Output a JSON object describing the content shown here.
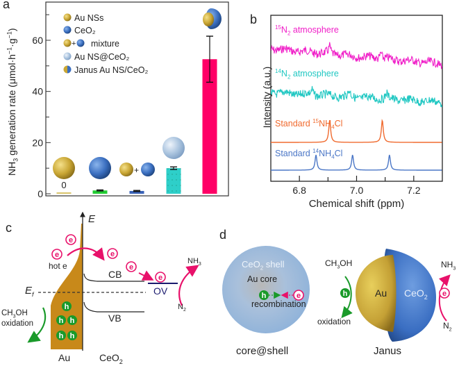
{
  "panels": {
    "a": {
      "label": "a"
    },
    "b": {
      "label": "b"
    },
    "c": {
      "label": "c"
    },
    "d": {
      "label": "d"
    }
  },
  "chart_data": [
    {
      "id": "a",
      "type": "bar",
      "title": "",
      "xlabel": "",
      "ylabel": "NH3 generation rate (μmol·h⁻¹·g⁻¹)",
      "ylabel_parts": {
        "pre": "NH",
        "sub": "3",
        "post": " generation rate (μmol·h",
        "sup1": "−1",
        "mid": "·g",
        "sup2": "−1",
        "end": ")"
      },
      "ylim": [
        0,
        75
      ],
      "yticks": [
        0,
        20,
        40,
        60
      ],
      "yminor_ticks": [
        10,
        30,
        50,
        70
      ],
      "categories": [
        "Au NSs",
        "CeO2",
        "mixture",
        "Au NS@CeO2",
        "Janus Au NS/CeO2"
      ],
      "values": [
        0,
        1.3,
        1.1,
        10.0,
        52.6
      ],
      "errors": [
        0,
        0.2,
        0.2,
        0.5,
        9.0
      ],
      "colors": [
        "#d9c46a",
        "#22cc33",
        "#3a63b8",
        "#2ecfc9",
        "#ff0066"
      ],
      "value_labels": [
        "0",
        "",
        "",
        "",
        ""
      ],
      "legend": {
        "placement": "top-left",
        "entries": [
          {
            "label": "Au NSs",
            "icon": "gold-sphere-icon"
          },
          {
            "label": "CeO₂",
            "icon": "blue-sphere-icon"
          },
          {
            "label": "mixture",
            "icon": "gold-plus-blue-sphere-icon",
            "plus": "+"
          },
          {
            "label": "Au NS@CeO₂",
            "icon": "core-shell-sphere-icon"
          },
          {
            "label": "Janus Au NS/CeO₂",
            "icon": "janus-sphere-icon"
          }
        ]
      }
    },
    {
      "id": "b",
      "type": "line",
      "title": "",
      "xlabel": "Chemical shift (ppm)",
      "ylabel": "Intensity (a.u.)",
      "xlim": [
        6.7,
        7.3
      ],
      "xticks": [
        6.8,
        7.0,
        7.2
      ],
      "xtick_labels": [
        "6.8",
        "7.0",
        "7.2"
      ],
      "xminor_ticks": [
        6.9,
        7.1
      ],
      "series": [
        {
          "name": "15N2 atmosphere",
          "label_sup": "15",
          "label_main": "N",
          "label_sub": "2",
          "label_rest": " atmosphere",
          "color": "#f01fc8",
          "noisy": true,
          "peaks": [
            6.906,
            7.085
          ],
          "offset": 4,
          "slope": -0.9
        },
        {
          "name": "14N2 atmosphere",
          "label_sup": "14",
          "label_main": "N",
          "label_sub": "2",
          "label_rest": " atmosphere",
          "color": "#1fc7c2",
          "noisy": true,
          "peaks": [
            6.845,
            6.975,
            7.105
          ],
          "offset": 2.75,
          "slope": -0.7
        },
        {
          "name": "Standard 15NH4Cl",
          "label_sup": "15",
          "label_pre": "Standard ",
          "label_main": "NH",
          "label_sub": "4",
          "label_rest": "Cl",
          "color": "#f06a2e",
          "noisy": false,
          "peaks": [
            6.906,
            7.09
          ],
          "offset": 1.4,
          "slope": 0
        },
        {
          "name": "Standard 14NH4Cl",
          "label_sup": "14",
          "label_pre": "Standard ",
          "label_main": "NH",
          "label_sub": "4",
          "label_rest": "Cl",
          "color": "#4a76c6",
          "noisy": false,
          "peaks": [
            6.858,
            6.986,
            7.115
          ],
          "offset": 0.5,
          "slope": 0
        }
      ]
    }
  ],
  "panel_c": {
    "axis_label": "E",
    "fermi_label": "E",
    "fermi_sub": "f",
    "hot_e_label": "hot e",
    "electron_glyph": "e",
    "hole_glyph": "h",
    "cb_label": "CB",
    "vb_label": "VB",
    "ov_label": "OV",
    "nh3_label": {
      "main": "NH",
      "sub": "3"
    },
    "n2_label": {
      "main": "N",
      "sub": "2"
    },
    "methanol_label": {
      "pre": "CH",
      "sub": "3",
      "post": "OH"
    },
    "oxidation_label": "oxidation",
    "au_label": "Au",
    "ceo2_label": {
      "main": "CeO",
      "sub": "2"
    },
    "colors": {
      "gold": "#c8891a",
      "electron": "#e8116a",
      "hole": "#1a9a2a",
      "ov": "#1a1a6e"
    }
  },
  "panel_d": {
    "core_shell": {
      "shell_label": {
        "main": "CeO",
        "sub": "2",
        "post": " shell"
      },
      "core_label": "Au core",
      "hole_glyph": "h",
      "electron_glyph": "e",
      "recombination_label": "recombination",
      "caption": "core@shell"
    },
    "janus": {
      "methanol_label": {
        "pre": "CH",
        "sub": "3",
        "post": "OH"
      },
      "oxidation_label": "oxidation",
      "hole_glyph": "h",
      "au_label": "Au",
      "ceo2_label": {
        "main": "CeO",
        "sub": "2"
      },
      "electron_glyph": "e",
      "nh3_label": {
        "main": "NH",
        "sub": "3"
      },
      "n2_label": {
        "main": "N",
        "sub": "2"
      },
      "caption": "Janus"
    }
  }
}
